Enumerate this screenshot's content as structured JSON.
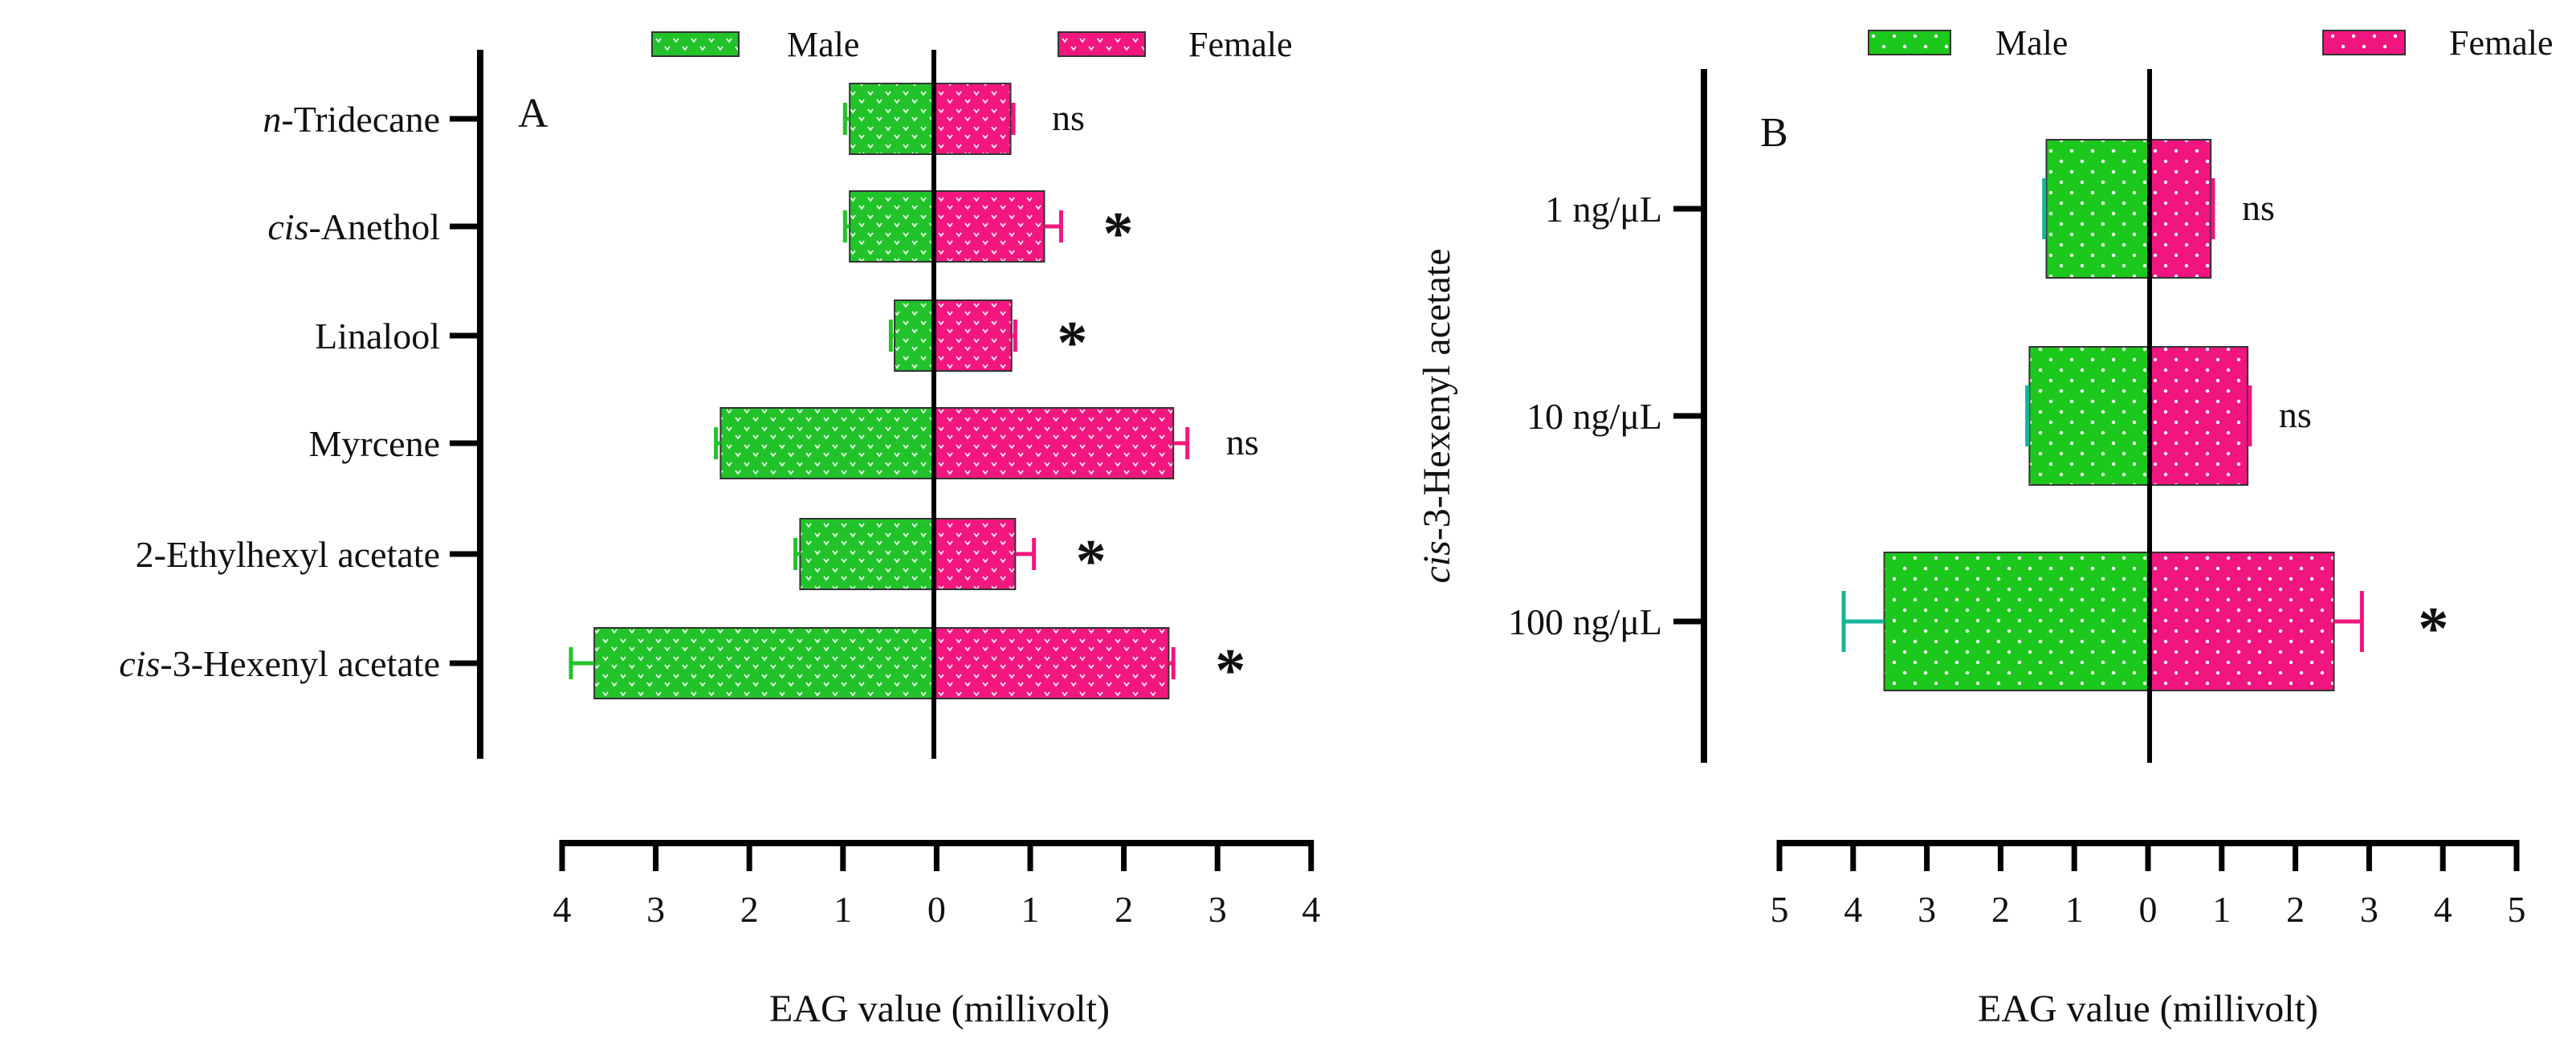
{
  "chart_data": [
    {
      "type": "bar",
      "orientation": "horizontal-butterfly",
      "panel": "A",
      "legend": [
        "Male",
        "Female"
      ],
      "categories": [
        "n-Tridecane",
        "cis-Anethol",
        "Linalool",
        "Myrcene",
        "2-Ethylhexyl acetate",
        "cis-3-Hexenyl acetate"
      ],
      "category_labels": [
        {
          "italic": "n",
          "rest": "-Tridecane"
        },
        {
          "italic": "cis",
          "rest": "-Anethol"
        },
        {
          "italic": "",
          "rest": "Linalool"
        },
        {
          "italic": "",
          "rest": "Myrcene"
        },
        {
          "italic": "",
          "rest": "2-Ethylhexyl acetate"
        },
        {
          "italic": "cis",
          "rest": "-3-Hexenyl acetate"
        }
      ],
      "series": [
        {
          "name": "Male",
          "values": [
            0.9,
            0.9,
            0.42,
            2.28,
            1.43,
            3.63
          ],
          "errors": [
            0.05,
            0.05,
            0.04,
            0.05,
            0.05,
            0.25
          ]
        },
        {
          "name": "Female",
          "values": [
            0.82,
            1.18,
            0.83,
            2.56,
            0.87,
            2.51
          ],
          "errors": [
            0.03,
            0.18,
            0.04,
            0.15,
            0.2,
            0.05
          ]
        }
      ],
      "significance": [
        "ns",
        "*",
        "*",
        "ns",
        "*",
        "*"
      ],
      "xticks": [
        "4",
        "3",
        "2",
        "1",
        "0",
        "1",
        "2",
        "3",
        "4"
      ],
      "xlim": [
        -4,
        4
      ],
      "xlabel": "EAG value (millivolt)",
      "ylabel": "",
      "colors": {
        "male": "#22c32a",
        "female": "#f2177e"
      }
    },
    {
      "type": "bar",
      "orientation": "horizontal-butterfly",
      "panel": "B",
      "legend": [
        "Male",
        "Female"
      ],
      "categories": [
        "1 ng/μL",
        "10 ng/μL",
        "100 ng/μL"
      ],
      "series": [
        {
          "name": "Male",
          "values": [
            1.4,
            1.63,
            3.6
          ],
          "errors": [
            0.03,
            0.03,
            0.55
          ]
        },
        {
          "name": "Female",
          "values": [
            0.83,
            1.33,
            2.5
          ],
          "errors": [
            0.03,
            0.03,
            0.38
          ]
        }
      ],
      "significance": [
        "ns",
        "ns",
        "*"
      ],
      "xticks": [
        "5",
        "4",
        "3",
        "2",
        "1",
        "0",
        "1",
        "2",
        "3",
        "4",
        "5"
      ],
      "xlim": [
        -5,
        5
      ],
      "xlabel": "EAG value (millivolt)",
      "ylabel_italic": "cis",
      "ylabel_rest": "-3-Hexenyl acetate",
      "colors": {
        "male": "#1dc81d",
        "female": "#f0157f"
      }
    }
  ]
}
